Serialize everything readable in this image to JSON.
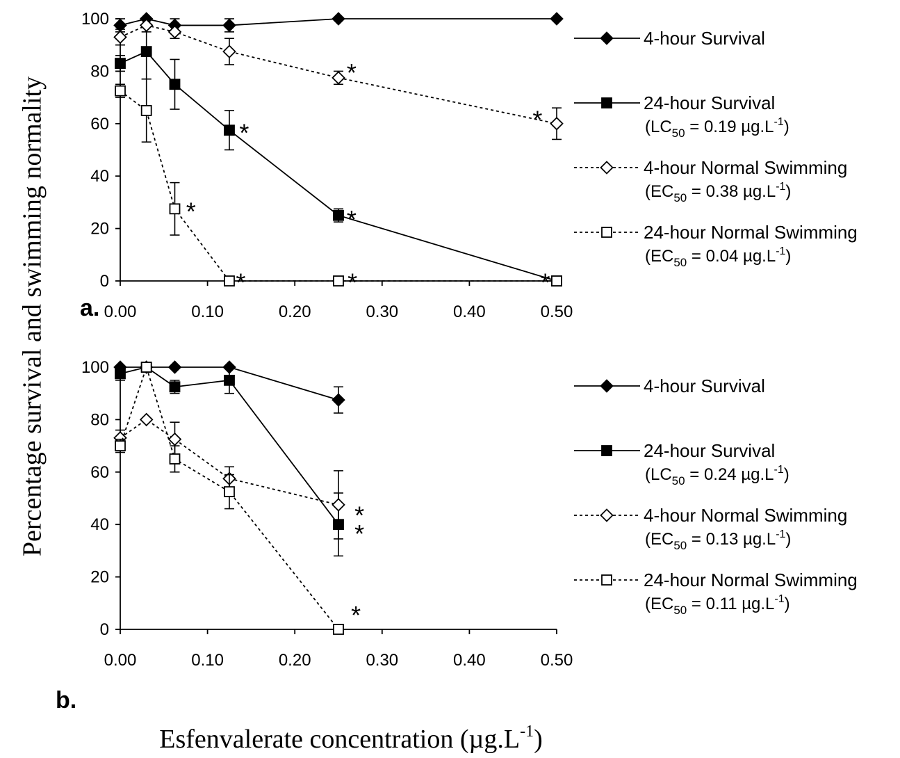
{
  "figure": {
    "ylabel": "Percentage survival and swimming normality",
    "xlabel_main": "Esfenvalerate concentration (",
    "xlabel_unit": "µg.L",
    "xlabel_sup": "-1",
    "xlabel_close": ")"
  },
  "chart_data": [
    {
      "type": "line",
      "panel_label": "a.",
      "xlim": [
        0,
        0.5
      ],
      "ylim": [
        0,
        100
      ],
      "x_ticks": [
        "0.00",
        "0.10",
        "0.20",
        "0.30",
        "0.40",
        "0.50"
      ],
      "y_ticks": [
        "0",
        "20",
        "40",
        "60",
        "80",
        "100"
      ],
      "grid": false,
      "legend_position": "right",
      "series": [
        {
          "name": "4-hour Survival",
          "marker": "diamond-filled",
          "line": "solid",
          "points": [
            {
              "x": 0,
              "y": 97.5,
              "err": 2.5
            },
            {
              "x": 0.03,
              "y": 100,
              "err": 0
            },
            {
              "x": 0.0625,
              "y": 97.5,
              "err": 2.5
            },
            {
              "x": 0.125,
              "y": 97.5,
              "err": 2.5
            },
            {
              "x": 0.25,
              "y": 100,
              "err": 0
            },
            {
              "x": 0.5,
              "y": 100,
              "err": 0
            }
          ]
        },
        {
          "name": "24-hour Survival",
          "annotation": {
            "prefix": "(LC",
            "sub": "50",
            "mid": " = 0.19 µg.L",
            "sup": "-1",
            "suffix": ")"
          },
          "marker": "square-filled",
          "line": "solid",
          "points": [
            {
              "x": 0,
              "y": 83,
              "err": 3
            },
            {
              "x": 0.03,
              "y": 87.5,
              "err": 10.5
            },
            {
              "x": 0.0625,
              "y": 75,
              "err": 9.5
            },
            {
              "x": 0.125,
              "y": 57.5,
              "err": 7.5
            },
            {
              "x": 0.25,
              "y": 25,
              "err": 2.5
            },
            {
              "x": 0.5,
              "y": 0,
              "err": 0
            }
          ]
        },
        {
          "name": "4-hour Normal Swimming",
          "annotation": {
            "prefix": "(EC",
            "sub": "50",
            "mid": " = 0.38 µg.L",
            "sup": "-1",
            "suffix": ")"
          },
          "marker": "diamond-open",
          "line": "dotted",
          "points": [
            {
              "x": 0,
              "y": 93,
              "err": 3
            },
            {
              "x": 0.03,
              "y": 97.5,
              "err": 2.5
            },
            {
              "x": 0.0625,
              "y": 95,
              "err": 2.5
            },
            {
              "x": 0.125,
              "y": 87.5,
              "err": 5
            },
            {
              "x": 0.25,
              "y": 77.5,
              "err": 2.5
            },
            {
              "x": 0.5,
              "y": 60,
              "err": 6
            }
          ]
        },
        {
          "name": "24-hour Normal Swimming",
          "annotation": {
            "prefix": "(EC",
            "sub": "50",
            "mid": " = 0.04 µg.L",
            "sup": "-1",
            "suffix": ")"
          },
          "marker": "square-open",
          "line": "dotted",
          "points": [
            {
              "x": 0,
              "y": 72.5,
              "err": 2.5
            },
            {
              "x": 0.03,
              "y": 65,
              "err": 12
            },
            {
              "x": 0.0625,
              "y": 27.5,
              "err": 10
            },
            {
              "x": 0.125,
              "y": 0,
              "err": 0
            },
            {
              "x": 0.25,
              "y": 0,
              "err": 0
            },
            {
              "x": 0.5,
              "y": 0,
              "err": 0
            }
          ]
        }
      ],
      "significance_markers": [
        {
          "label": "*",
          "x": 0.265,
          "y": 82
        },
        {
          "label": "*",
          "x": 0.478,
          "y": 64
        },
        {
          "label": "*",
          "x": 0.142,
          "y": 59
        },
        {
          "label": "*",
          "x": 0.265,
          "y": 26
        },
        {
          "label": "*",
          "x": 0.081,
          "y": 29
        },
        {
          "label": "*",
          "x": 0.138,
          "y": 2
        },
        {
          "label": "*",
          "x": 0.266,
          "y": 2
        },
        {
          "label": "*",
          "x": 0.487,
          "y": 2
        }
      ]
    },
    {
      "type": "line",
      "panel_label": "b.",
      "xlim": [
        0,
        0.5
      ],
      "ylim": [
        0,
        100
      ],
      "x_ticks": [
        "0.00",
        "0.10",
        "0.20",
        "0.30",
        "0.40",
        "0.50"
      ],
      "y_ticks": [
        "0",
        "20",
        "40",
        "60",
        "80",
        "100"
      ],
      "grid": false,
      "legend_position": "right",
      "series": [
        {
          "name": "4-hour Survival",
          "marker": "diamond-filled",
          "line": "solid",
          "points": [
            {
              "x": 0,
              "y": 100,
              "err": 0
            },
            {
              "x": 0.03,
              "y": 100,
              "err": 0
            },
            {
              "x": 0.0625,
              "y": 100,
              "err": 0
            },
            {
              "x": 0.125,
              "y": 100,
              "err": 0
            },
            {
              "x": 0.25,
              "y": 87.5,
              "err": 5
            }
          ]
        },
        {
          "name": "24-hour Survival",
          "annotation": {
            "prefix": "(LC",
            "sub": "50",
            "mid": " = 0.24 µg.L",
            "sup": "-1",
            "suffix": ")"
          },
          "marker": "square-filled",
          "line": "solid",
          "points": [
            {
              "x": 0,
              "y": 97.5,
              "err": 2.5
            },
            {
              "x": 0.03,
              "y": 100,
              "err": 0
            },
            {
              "x": 0.0625,
              "y": 92.5,
              "err": 2.5
            },
            {
              "x": 0.125,
              "y": 95,
              "err": 5
            },
            {
              "x": 0.25,
              "y": 40,
              "err": 12
            }
          ]
        },
        {
          "name": "4-hour Normal Swimming",
          "annotation": {
            "prefix": "(EC",
            "sub": "50",
            "mid": " = 0.13 µg.L",
            "sup": "-1",
            "suffix": ")"
          },
          "marker": "diamond-open",
          "line": "dotted",
          "points": [
            {
              "x": 0,
              "y": 73,
              "err": 3
            },
            {
              "x": 0.03,
              "y": 80,
              "err": 0
            },
            {
              "x": 0.0625,
              "y": 72.5,
              "err": 6.5
            },
            {
              "x": 0.125,
              "y": 57.5,
              "err": 4.5
            },
            {
              "x": 0.25,
              "y": 47.5,
              "err": 13
            }
          ]
        },
        {
          "name": "24-hour Normal Swimming",
          "annotation": {
            "prefix": "(EC",
            "sub": "50",
            "mid": " = 0.11 µg.L",
            "sup": "-1",
            "suffix": ")"
          },
          "marker": "square-open",
          "line": "dotted",
          "points": [
            {
              "x": 0,
              "y": 70,
              "err": 2.5
            },
            {
              "x": 0.03,
              "y": 100,
              "err": 0
            },
            {
              "x": 0.0625,
              "y": 65,
              "err": 5
            },
            {
              "x": 0.125,
              "y": 52.5,
              "err": 6.5
            },
            {
              "x": 0.25,
              "y": 0,
              "err": 0
            }
          ]
        }
      ],
      "significance_markers": [
        {
          "label": "*",
          "x": 0.274,
          "y": 46
        },
        {
          "label": "*",
          "x": 0.274,
          "y": 39
        },
        {
          "label": "*",
          "x": 0.27,
          "y": 8
        }
      ]
    }
  ]
}
